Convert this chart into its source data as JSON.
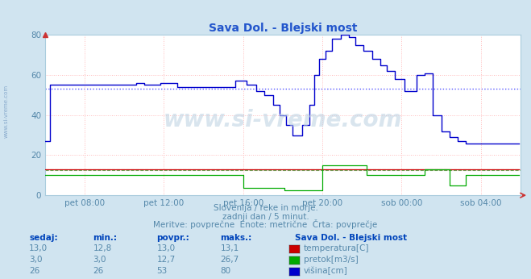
{
  "title": "Sava Dol. - Blejski most",
  "bg_color": "#d0e4f0",
  "plot_bg_color": "#ffffff",
  "xlabel_ticks": [
    "pet 08:00",
    "pet 12:00",
    "pet 16:00",
    "pet 20:00",
    "sob 00:00",
    "sob 04:00"
  ],
  "tick_positions": [
    24,
    72,
    120,
    168,
    216,
    264
  ],
  "ylim": [
    0,
    80
  ],
  "yticks": [
    0,
    20,
    40,
    60,
    80
  ],
  "avg_temp": 13.0,
  "avg_pretok": 12.7,
  "avg_visina": 53.0,
  "subtitle1": "Slovenija / reke in morje.",
  "subtitle2": "zadnji dan / 5 minut.",
  "subtitle3": "Meritve: povprečne  Enote: metrične  Črta: povprečje",
  "table_headers": [
    "sedaj:",
    "min.:",
    "povpr.:",
    "maks.:"
  ],
  "table_station": "Sava Dol. - Blejski most",
  "table_rows": [
    [
      "13,0",
      "12,8",
      "13,0",
      "13,1",
      "#cc0000",
      "temperatura[C]"
    ],
    [
      "3,0",
      "3,0",
      "12,7",
      "26,7",
      "#00aa00",
      "pretok[m3/s]"
    ],
    [
      "26",
      "26",
      "53",
      "80",
      "#0000cc",
      "višina[cm]"
    ]
  ],
  "watermark": "www.si-vreme.com",
  "num_points": 288,
  "color_temp": "#cc0000",
  "color_pretok": "#00aa00",
  "color_visina": "#0000cc",
  "color_avg_visina": "#4444ff",
  "color_avg_temp": "#cc0000",
  "color_avg_pretok": "#008800",
  "text_color": "#5588aa",
  "header_color": "#0044bb",
  "title_color": "#2255cc"
}
